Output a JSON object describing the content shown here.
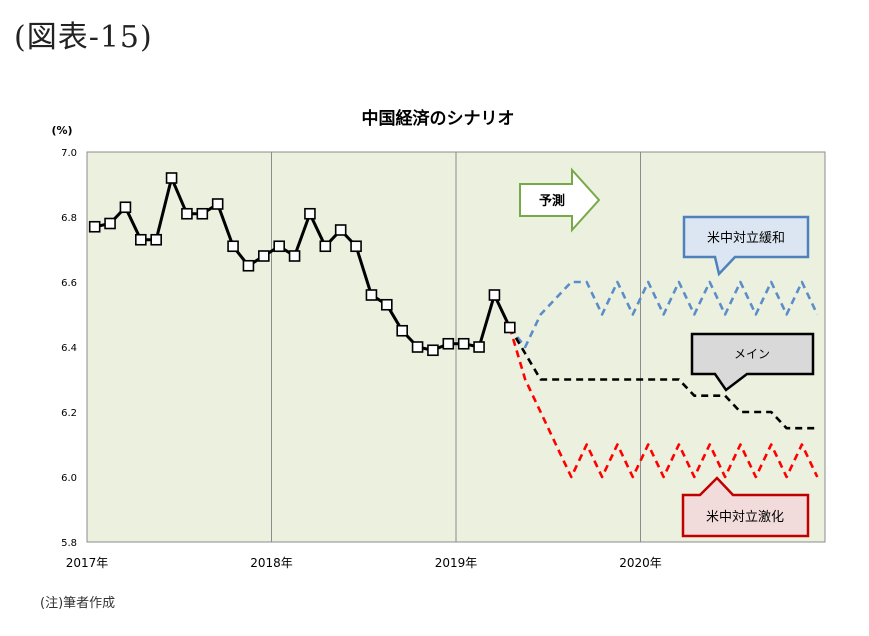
{
  "figure_label": "(図表-15)",
  "note": "(注)筆者作成",
  "chart_data": {
    "type": "line",
    "title": "中国経済のシナリオ",
    "ylabel": "(%)",
    "ylim": [
      5.8,
      7.0
    ],
    "yticks": [
      "7.0",
      "6.8",
      "6.6",
      "6.4",
      "6.2",
      "6.0",
      "5.8"
    ],
    "xtick_labels": [
      "2017年",
      "2018年",
      "2019年",
      "2020年"
    ],
    "xlim_months": [
      "2017-01",
      "2020-12"
    ],
    "grid": "vertical lines at year boundaries",
    "plot_background": "#ebf1de",
    "forecast_arrow_label": "予測",
    "series": [
      {
        "kind": "actual",
        "color": "#000000",
        "x": [
          "2017-01",
          "2017-02",
          "2017-03",
          "2017-04",
          "2017-05",
          "2017-06",
          "2017-07",
          "2017-08",
          "2017-09",
          "2017-10",
          "2017-11",
          "2017-12",
          "2018-01",
          "2018-02",
          "2018-03",
          "2018-04",
          "2018-05",
          "2018-06",
          "2018-07",
          "2018-08",
          "2018-09",
          "2018-10",
          "2018-11",
          "2018-12",
          "2019-01",
          "2019-02",
          "2019-03",
          "2019-04"
        ],
        "values": [
          6.77,
          6.78,
          6.83,
          6.73,
          6.73,
          6.92,
          6.81,
          6.81,
          6.84,
          6.71,
          6.65,
          6.68,
          6.71,
          6.68,
          6.81,
          6.71,
          6.76,
          6.71,
          6.56,
          6.53,
          6.45,
          6.4,
          6.39,
          6.41,
          6.41,
          6.4,
          6.56,
          6.46
        ]
      },
      {
        "name": "米中対立緩和",
        "color": "#5b8dc9",
        "callout_border": "#4f81bd",
        "callout_fill": "#dce6f2",
        "x": [
          "2019-04",
          "2019-05",
          "2019-06",
          "2019-07",
          "2019-08",
          "2019-09",
          "2019-10",
          "2019-11",
          "2019-12",
          "2020-01",
          "2020-02",
          "2020-03",
          "2020-04",
          "2020-05",
          "2020-06",
          "2020-07",
          "2020-08",
          "2020-09",
          "2020-10",
          "2020-11",
          "2020-12"
        ],
        "values": [
          6.46,
          6.4,
          6.5,
          6.55,
          6.6,
          6.6,
          6.5,
          6.6,
          6.5,
          6.6,
          6.5,
          6.6,
          6.5,
          6.6,
          6.5,
          6.6,
          6.5,
          6.6,
          6.5,
          6.6,
          6.5
        ]
      },
      {
        "name": "メイン",
        "color": "#000000",
        "callout_border": "#000000",
        "callout_fill": "#d9d9d9",
        "x": [
          "2019-04",
          "2019-05",
          "2019-06",
          "2019-07",
          "2019-08",
          "2019-09",
          "2019-10",
          "2019-11",
          "2019-12",
          "2020-01",
          "2020-02",
          "2020-03",
          "2020-04",
          "2020-05",
          "2020-06",
          "2020-07",
          "2020-08",
          "2020-09",
          "2020-10",
          "2020-11",
          "2020-12"
        ],
        "values": [
          6.46,
          6.38,
          6.3,
          6.3,
          6.3,
          6.3,
          6.3,
          6.3,
          6.3,
          6.3,
          6.3,
          6.3,
          6.25,
          6.25,
          6.25,
          6.2,
          6.2,
          6.2,
          6.15,
          6.15,
          6.15
        ]
      },
      {
        "name": "米中対立激化",
        "color": "#ff0000",
        "callout_border": "#c00000",
        "callout_fill": "#f2dcdb",
        "x": [
          "2019-04",
          "2019-05",
          "2019-06",
          "2019-07",
          "2019-08",
          "2019-09",
          "2019-10",
          "2019-11",
          "2019-12",
          "2020-01",
          "2020-02",
          "2020-03",
          "2020-04",
          "2020-05",
          "2020-06",
          "2020-07",
          "2020-08",
          "2020-09",
          "2020-10",
          "2020-11",
          "2020-12"
        ],
        "values": [
          6.46,
          6.3,
          6.2,
          6.1,
          6.0,
          6.1,
          6.0,
          6.1,
          6.0,
          6.1,
          6.0,
          6.1,
          6.0,
          6.1,
          6.0,
          6.1,
          6.0,
          6.1,
          6.0,
          6.1,
          6.0
        ]
      }
    ]
  }
}
